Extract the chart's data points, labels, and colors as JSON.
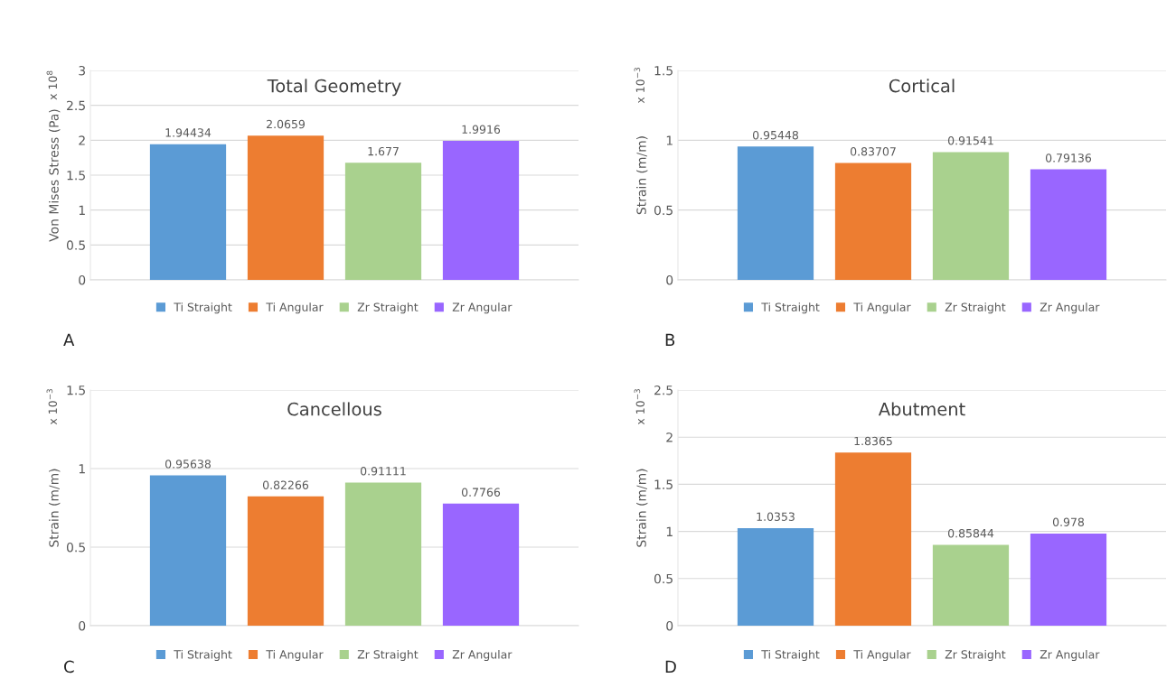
{
  "chart_data": [
    {
      "type": "bar",
      "title": "Total Geometry",
      "ylabel": "Von Mises Stress (Pa)",
      "categories": [
        null
      ],
      "series": [
        {
          "name": "Ti Straight",
          "color": "#5b9bd5",
          "values": [
            1.94434
          ]
        },
        {
          "name": "Ti Angular",
          "color": "#ed7d31",
          "values": [
            2.0659
          ]
        },
        {
          "name": "Zr Straight",
          "color": "#a9d18e",
          "values": [
            1.677
          ]
        },
        {
          "name": "Zr Angular",
          "color": "#9966ff",
          "values": [
            1.9916
          ]
        }
      ],
      "ylim": [
        0,
        3
      ],
      "yticks": [
        0,
        0.5,
        1,
        1.5,
        2,
        2.5,
        3
      ],
      "grid": "y",
      "legend": "bottom",
      "data_labels": true,
      "annotations": [
        "x 10$^{8}$",
        "A"
      ]
    },
    {
      "type": "bar",
      "title": "Cortical",
      "ylabel": "Strain (m/m)",
      "categories": [
        null
      ],
      "series": [
        {
          "name": "Ti Straight",
          "color": "#5b9bd5",
          "values": [
            0.95448
          ]
        },
        {
          "name": "Ti Angular",
          "color": "#ed7d31",
          "values": [
            0.83707
          ]
        },
        {
          "name": "Zr Straight",
          "color": "#a9d18e",
          "values": [
            0.91541
          ]
        },
        {
          "name": "Zr Angular",
          "color": "#9966ff",
          "values": [
            0.79136
          ]
        }
      ],
      "ylim": [
        0,
        1.5
      ],
      "yticks": [
        0,
        0.5,
        1,
        1.5
      ],
      "grid": "y",
      "legend": "bottom",
      "data_labels": true,
      "annotations": [
        "x 10$^{−3}$",
        "B"
      ]
    },
    {
      "type": "bar",
      "title": "Cancellous",
      "ylabel": "Strain (m/m)",
      "categories": [
        null
      ],
      "series": [
        {
          "name": "Ti Straight",
          "color": "#5b9bd5",
          "values": [
            0.95638
          ]
        },
        {
          "name": "Ti Angular",
          "color": "#ed7d31",
          "values": [
            0.82266
          ]
        },
        {
          "name": "Zr Straight",
          "color": "#a9d18e",
          "values": [
            0.91111
          ]
        },
        {
          "name": "Zr Angular",
          "color": "#9966ff",
          "values": [
            0.7766
          ]
        }
      ],
      "ylim": [
        0,
        1.5
      ],
      "yticks": [
        0,
        0.5,
        1,
        1.5
      ],
      "grid": "y",
      "legend": "bottom",
      "data_labels": true,
      "annotations": [
        "x 10$^{−3}$",
        "C"
      ]
    },
    {
      "type": "bar",
      "title": "Abutment",
      "ylabel": "Strain (m/m)",
      "categories": [
        null
      ],
      "series": [
        {
          "name": "Ti Straight",
          "color": "#5b9bd5",
          "values": [
            1.0353
          ]
        },
        {
          "name": "Ti Angular",
          "color": "#ed7d31",
          "values": [
            1.8365
          ]
        },
        {
          "name": "Zr Straight",
          "color": "#a9d18e",
          "values": [
            0.85844
          ]
        },
        {
          "name": "Zr Angular",
          "color": "#9966ff",
          "values": [
            0.978
          ]
        }
      ],
      "ylim": [
        0,
        2.5
      ],
      "yticks": [
        0,
        0.5,
        1,
        1.5,
        2,
        2.5
      ],
      "grid": "y",
      "legend": "bottom",
      "data_labels": true,
      "annotations": [
        "x 10$^{−3}$",
        "D"
      ]
    }
  ]
}
